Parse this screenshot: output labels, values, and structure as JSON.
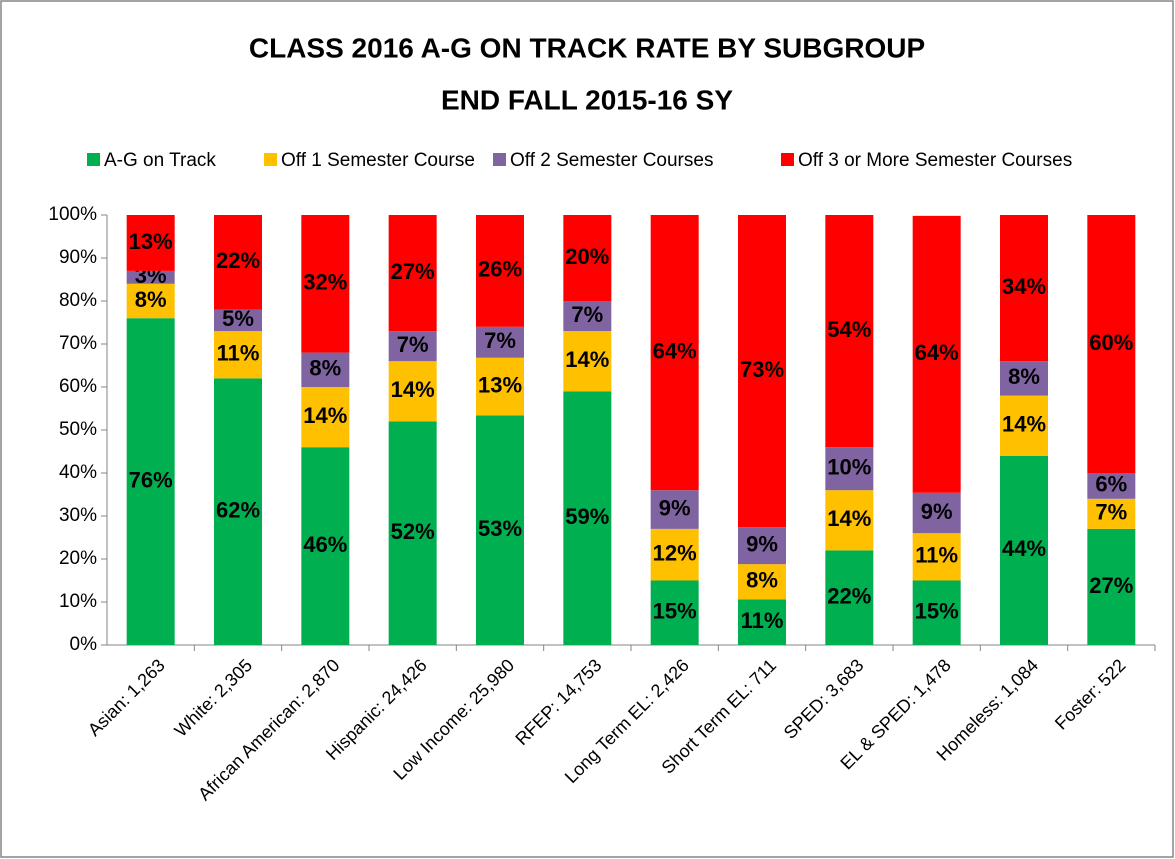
{
  "chart_data": {
    "type": "stacked_bar",
    "title": "CLASS 2016 A-G ON TRACK RATE BY SUBGROUP",
    "subtitle": "END FALL 2015-16 SY",
    "categories": [
      "Asian: 1,263",
      "White: 2,305",
      "African American: 2,870",
      "Hispanic: 24,426",
      "Low Income: 25,980",
      "RFEP: 14,753",
      "Long Term EL: 2,426",
      "Short Term EL: 711",
      "SPED: 3,683",
      "EL & SPED: 1,478",
      "Homeless: 1,084",
      "Foster: 522"
    ],
    "series": [
      {
        "name": "A-G on Track",
        "color": "#00b050",
        "values": [
          76,
          62,
          46,
          52,
          53.4,
          59,
          15,
          10.6,
          22,
          15,
          44,
          27
        ],
        "value_labels": [
          "76%",
          "62%",
          "46%",
          "52%",
          "53%",
          "59%",
          "15%",
          "11%",
          "22%",
          "15%",
          "44%",
          "27%"
        ]
      },
      {
        "name": "Off 1 Semester Course",
        "color": "#ffc000",
        "values": [
          8,
          11,
          14,
          14,
          13.4,
          14,
          12,
          8.2,
          14,
          11,
          14,
          7
        ],
        "value_labels": [
          "8%",
          "11%",
          "14%",
          "14%",
          "13%",
          "14%",
          "12%",
          "8%",
          "14%",
          "11%",
          "14%",
          "7%"
        ]
      },
      {
        "name": "Off 2 Semester Courses",
        "color": "#8064a2",
        "values": [
          3,
          5,
          8,
          7,
          7.2,
          7,
          9,
          8.6,
          10,
          9.4,
          8,
          6
        ],
        "value_labels": [
          "3%",
          "5%",
          "8%",
          "7%",
          "7%",
          "7%",
          "9%",
          "9%",
          "10%",
          "9%",
          "8%",
          "6%"
        ]
      },
      {
        "name": "Off 3 or More Semester Courses",
        "color": "#ff0000",
        "values": [
          13,
          22,
          32,
          27,
          26,
          20,
          64,
          72.6,
          54,
          64.4,
          34,
          60
        ],
        "value_labels": [
          "13%",
          "22%",
          "32%",
          "27%",
          "26%",
          "20%",
          "64%",
          "73%",
          "54%",
          "64%",
          "34%",
          "60%"
        ]
      }
    ],
    "ylim": [
      0,
      100
    ],
    "yticks": [
      {
        "value": 0,
        "label": "0%"
      },
      {
        "value": 10,
        "label": "10%"
      },
      {
        "value": 20,
        "label": "20%"
      },
      {
        "value": 30,
        "label": "30%"
      },
      {
        "value": 40,
        "label": "40%"
      },
      {
        "value": 50,
        "label": "50%"
      },
      {
        "value": 60,
        "label": "60%"
      },
      {
        "value": 70,
        "label": "70%"
      },
      {
        "value": 80,
        "label": "80%"
      },
      {
        "value": 90,
        "label": "90%"
      },
      {
        "value": 100,
        "label": "100%"
      }
    ],
    "legend": "top"
  }
}
